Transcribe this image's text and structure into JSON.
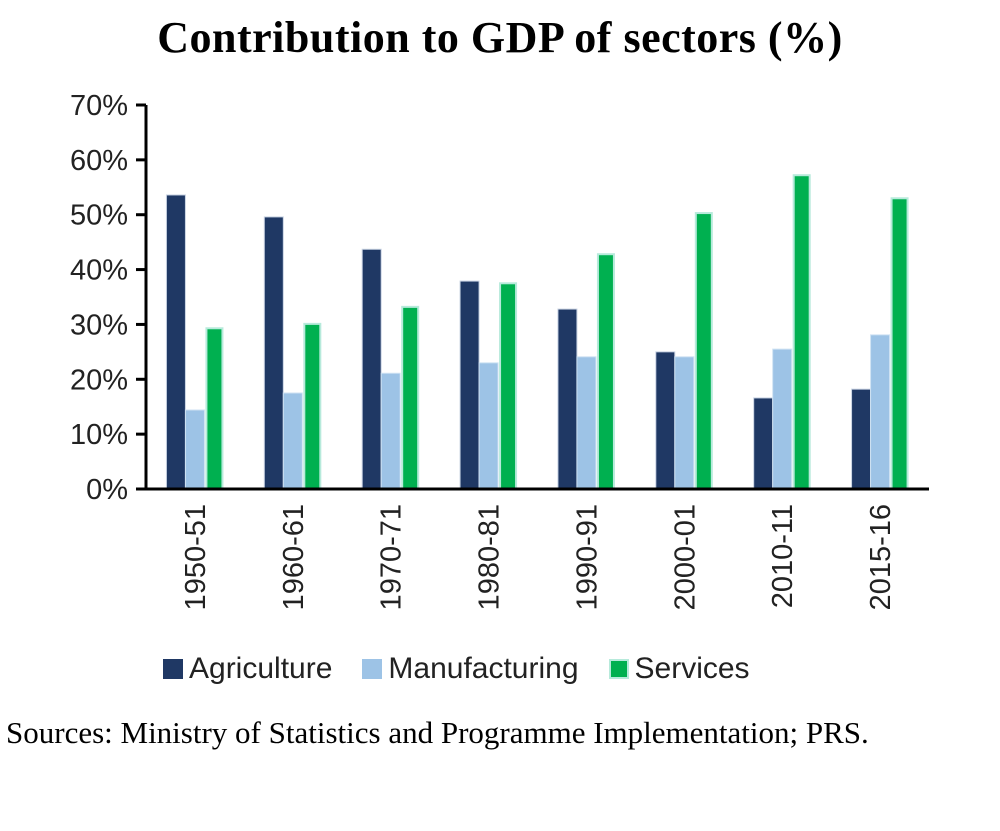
{
  "chart_data": {
    "type": "bar",
    "title": "Contribution to GDP of sectors (%)",
    "xlabel": "",
    "ylabel": "",
    "ylim": [
      0,
      70
    ],
    "yticks": [
      "0%",
      "10%",
      "20%",
      "30%",
      "40%",
      "50%",
      "60%",
      "70%"
    ],
    "grid": false,
    "legend_position": "bottom",
    "categories": [
      "1950-51",
      "1960-61",
      "1970-71",
      "1980-81",
      "1990-91",
      "2000-01",
      "2010-11",
      "2015-16"
    ],
    "series": [
      {
        "name": "Agriculture",
        "color": "#1f3864",
        "values": [
          53.6,
          49.6,
          43.7,
          37.9,
          32.8,
          25.0,
          16.6,
          18.2
        ]
      },
      {
        "name": "Manufacturing",
        "color": "#9dc3e6",
        "values": [
          14.4,
          17.5,
          21.1,
          23.0,
          24.1,
          24.1,
          25.5,
          28.1
        ]
      },
      {
        "name": "Services",
        "color": "#00b050",
        "values": [
          29.3,
          30.1,
          33.2,
          37.5,
          42.8,
          50.3,
          57.2,
          53.0
        ]
      }
    ],
    "source": "Sources: Ministry of Statistics and Programme Implementation; PRS."
  }
}
